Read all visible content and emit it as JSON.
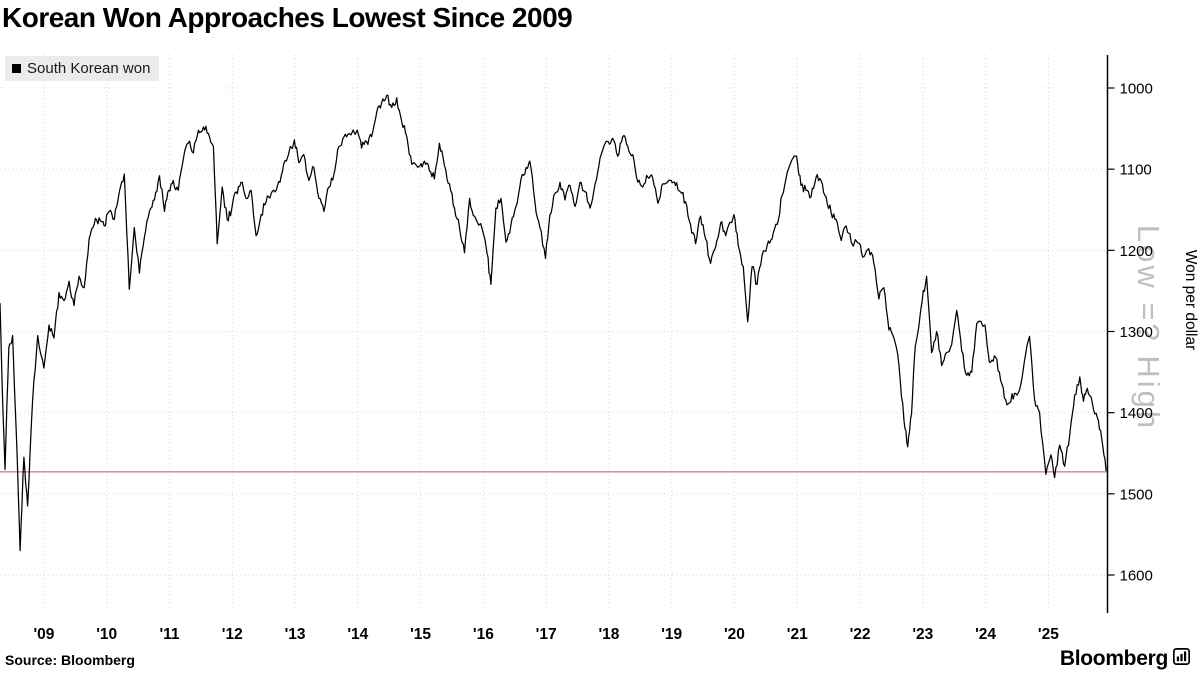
{
  "title": "Korean Won Approaches Lowest Since 2009",
  "legend": {
    "label": "South Korean won",
    "marker_color": "#000000"
  },
  "source": "Source: Bloomberg",
  "brand": "Bloomberg",
  "watermark": "Low =? High",
  "colors": {
    "line": "#000000",
    "reference_line": "#c9504e",
    "grid": "#d7d7d7",
    "axis": "#000000",
    "watermark": "#b5b5b5",
    "legend_bg": "#ebebeb"
  },
  "chart_data": {
    "type": "line",
    "title": "Korean Won Approaches Lowest Since 2009",
    "xlabel": "",
    "ylabel": "Won per dollar",
    "y_axis": {
      "label": "Won per dollar",
      "inverted": true,
      "range": [
        1000,
        1600
      ],
      "side": "right"
    },
    "y_ticks": [
      1000,
      1100,
      1200,
      1300,
      1400,
      1500,
      1600
    ],
    "x_range": [
      2008.3,
      2025.95
    ],
    "x_ticks": [
      {
        "year": 2009,
        "label": "'09"
      },
      {
        "year": 2010,
        "label": "'10"
      },
      {
        "year": 2011,
        "label": "'11"
      },
      {
        "year": 2012,
        "label": "'12"
      },
      {
        "year": 2013,
        "label": "'13"
      },
      {
        "year": 2014,
        "label": "'14"
      },
      {
        "year": 2015,
        "label": "'15"
      },
      {
        "year": 2016,
        "label": "'16"
      },
      {
        "year": 2017,
        "label": "'17"
      },
      {
        "year": 2018,
        "label": "'18"
      },
      {
        "year": 2019,
        "label": "'19"
      },
      {
        "year": 2020,
        "label": "'20"
      },
      {
        "year": 2021,
        "label": "'21"
      },
      {
        "year": 2022,
        "label": "'22"
      },
      {
        "year": 2023,
        "label": "'23"
      },
      {
        "year": 2024,
        "label": "'24"
      },
      {
        "year": 2025,
        "label": "'25"
      }
    ],
    "reference_line": {
      "value": 1473,
      "color": "#c9504e"
    },
    "series": [
      {
        "name": "South Korean won",
        "points": [
          [
            2008.3,
            1265
          ],
          [
            2008.34,
            1380
          ],
          [
            2008.38,
            1470
          ],
          [
            2008.44,
            1320
          ],
          [
            2008.5,
            1305
          ],
          [
            2008.56,
            1425
          ],
          [
            2008.62,
            1570
          ],
          [
            2008.68,
            1455
          ],
          [
            2008.74,
            1515
          ],
          [
            2008.82,
            1385
          ],
          [
            2008.9,
            1305
          ],
          [
            2009.0,
            1345
          ],
          [
            2009.08,
            1292
          ],
          [
            2009.16,
            1308
          ],
          [
            2009.24,
            1252
          ],
          [
            2009.32,
            1262
          ],
          [
            2009.4,
            1238
          ],
          [
            2009.48,
            1268
          ],
          [
            2009.56,
            1232
          ],
          [
            2009.64,
            1246
          ],
          [
            2009.72,
            1186
          ],
          [
            2009.8,
            1168
          ],
          [
            2009.88,
            1160
          ],
          [
            2009.96,
            1170
          ],
          [
            2010.04,
            1152
          ],
          [
            2010.12,
            1162
          ],
          [
            2010.2,
            1128
          ],
          [
            2010.28,
            1106
          ],
          [
            2010.36,
            1248
          ],
          [
            2010.44,
            1172
          ],
          [
            2010.52,
            1228
          ],
          [
            2010.6,
            1184
          ],
          [
            2010.68,
            1152
          ],
          [
            2010.76,
            1138
          ],
          [
            2010.84,
            1108
          ],
          [
            2010.92,
            1152
          ],
          [
            2010.99,
            1126
          ],
          [
            2011.06,
            1114
          ],
          [
            2011.14,
            1126
          ],
          [
            2011.22,
            1088
          ],
          [
            2011.3,
            1068
          ],
          [
            2011.38,
            1080
          ],
          [
            2011.46,
            1052
          ],
          [
            2011.54,
            1048
          ],
          [
            2011.62,
            1056
          ],
          [
            2011.7,
            1072
          ],
          [
            2011.76,
            1192
          ],
          [
            2011.84,
            1122
          ],
          [
            2011.92,
            1162
          ],
          [
            2011.99,
            1150
          ],
          [
            2012.06,
            1128
          ],
          [
            2012.14,
            1116
          ],
          [
            2012.22,
            1136
          ],
          [
            2012.3,
            1126
          ],
          [
            2012.38,
            1182
          ],
          [
            2012.46,
            1156
          ],
          [
            2012.54,
            1140
          ],
          [
            2012.62,
            1130
          ],
          [
            2012.7,
            1126
          ],
          [
            2012.78,
            1108
          ],
          [
            2012.86,
            1090
          ],
          [
            2012.99,
            1064
          ],
          [
            2013.06,
            1092
          ],
          [
            2013.14,
            1082
          ],
          [
            2013.22,
            1114
          ],
          [
            2013.3,
            1098
          ],
          [
            2013.38,
            1136
          ],
          [
            2013.46,
            1152
          ],
          [
            2013.54,
            1122
          ],
          [
            2013.62,
            1106
          ],
          [
            2013.7,
            1072
          ],
          [
            2013.78,
            1060
          ],
          [
            2013.86,
            1056
          ],
          [
            2013.99,
            1052
          ],
          [
            2014.06,
            1074
          ],
          [
            2014.14,
            1066
          ],
          [
            2014.22,
            1060
          ],
          [
            2014.3,
            1030
          ],
          [
            2014.38,
            1018
          ],
          [
            2014.46,
            1009
          ],
          [
            2014.54,
            1024
          ],
          [
            2014.62,
            1012
          ],
          [
            2014.7,
            1042
          ],
          [
            2014.78,
            1060
          ],
          [
            2014.86,
            1094
          ],
          [
            2014.99,
            1096
          ],
          [
            2015.06,
            1090
          ],
          [
            2015.14,
            1102
          ],
          [
            2015.22,
            1112
          ],
          [
            2015.3,
            1068
          ],
          [
            2015.38,
            1096
          ],
          [
            2015.46,
            1118
          ],
          [
            2015.54,
            1148
          ],
          [
            2015.62,
            1172
          ],
          [
            2015.7,
            1203
          ],
          [
            2015.78,
            1136
          ],
          [
            2015.86,
            1158
          ],
          [
            2015.99,
            1176
          ],
          [
            2016.06,
            1204
          ],
          [
            2016.12,
            1242
          ],
          [
            2016.2,
            1148
          ],
          [
            2016.28,
            1136
          ],
          [
            2016.36,
            1190
          ],
          [
            2016.44,
            1168
          ],
          [
            2016.52,
            1146
          ],
          [
            2016.6,
            1112
          ],
          [
            2016.68,
            1098
          ],
          [
            2016.74,
            1090
          ],
          [
            2016.82,
            1140
          ],
          [
            2016.9,
            1172
          ],
          [
            2016.99,
            1210
          ],
          [
            2017.06,
            1156
          ],
          [
            2017.14,
            1130
          ],
          [
            2017.22,
            1116
          ],
          [
            2017.3,
            1138
          ],
          [
            2017.38,
            1120
          ],
          [
            2017.46,
            1146
          ],
          [
            2017.54,
            1116
          ],
          [
            2017.62,
            1128
          ],
          [
            2017.7,
            1148
          ],
          [
            2017.78,
            1118
          ],
          [
            2017.86,
            1086
          ],
          [
            2017.99,
            1066
          ],
          [
            2018.06,
            1062
          ],
          [
            2018.14,
            1084
          ],
          [
            2018.22,
            1060
          ],
          [
            2018.3,
            1072
          ],
          [
            2018.38,
            1082
          ],
          [
            2018.46,
            1116
          ],
          [
            2018.54,
            1122
          ],
          [
            2018.62,
            1110
          ],
          [
            2018.7,
            1112
          ],
          [
            2018.78,
            1142
          ],
          [
            2018.86,
            1118
          ],
          [
            2018.99,
            1114
          ],
          [
            2019.06,
            1120
          ],
          [
            2019.14,
            1128
          ],
          [
            2019.22,
            1140
          ],
          [
            2019.3,
            1168
          ],
          [
            2019.38,
            1192
          ],
          [
            2019.46,
            1158
          ],
          [
            2019.54,
            1186
          ],
          [
            2019.62,
            1216
          ],
          [
            2019.7,
            1196
          ],
          [
            2019.78,
            1166
          ],
          [
            2019.86,
            1182
          ],
          [
            2019.99,
            1156
          ],
          [
            2020.06,
            1194
          ],
          [
            2020.14,
            1220
          ],
          [
            2020.21,
            1288
          ],
          [
            2020.28,
            1220
          ],
          [
            2020.36,
            1242
          ],
          [
            2020.44,
            1206
          ],
          [
            2020.52,
            1194
          ],
          [
            2020.6,
            1186
          ],
          [
            2020.68,
            1168
          ],
          [
            2020.76,
            1132
          ],
          [
            2020.84,
            1104
          ],
          [
            2020.99,
            1084
          ],
          [
            2021.06,
            1120
          ],
          [
            2021.14,
            1126
          ],
          [
            2021.22,
            1134
          ],
          [
            2021.3,
            1110
          ],
          [
            2021.38,
            1114
          ],
          [
            2021.46,
            1134
          ],
          [
            2021.54,
            1154
          ],
          [
            2021.62,
            1162
          ],
          [
            2021.7,
            1188
          ],
          [
            2021.78,
            1170
          ],
          [
            2021.86,
            1190
          ],
          [
            2021.99,
            1192
          ],
          [
            2022.06,
            1208
          ],
          [
            2022.14,
            1198
          ],
          [
            2022.22,
            1216
          ],
          [
            2022.3,
            1260
          ],
          [
            2022.38,
            1246
          ],
          [
            2022.46,
            1298
          ],
          [
            2022.54,
            1308
          ],
          [
            2022.62,
            1342
          ],
          [
            2022.7,
            1410
          ],
          [
            2022.76,
            1442
          ],
          [
            2022.82,
            1402
          ],
          [
            2022.88,
            1318
          ],
          [
            2022.99,
            1262
          ],
          [
            2023.06,
            1232
          ],
          [
            2023.14,
            1326
          ],
          [
            2023.22,
            1300
          ],
          [
            2023.3,
            1342
          ],
          [
            2023.38,
            1326
          ],
          [
            2023.46,
            1316
          ],
          [
            2023.54,
            1274
          ],
          [
            2023.62,
            1324
          ],
          [
            2023.7,
            1354
          ],
          [
            2023.78,
            1350
          ],
          [
            2023.86,
            1290
          ],
          [
            2023.99,
            1292
          ],
          [
            2024.06,
            1338
          ],
          [
            2024.14,
            1330
          ],
          [
            2024.22,
            1350
          ],
          [
            2024.3,
            1382
          ],
          [
            2024.38,
            1388
          ],
          [
            2024.46,
            1376
          ],
          [
            2024.54,
            1372
          ],
          [
            2024.62,
            1336
          ],
          [
            2024.7,
            1306
          ],
          [
            2024.78,
            1384
          ],
          [
            2024.86,
            1400
          ],
          [
            2024.96,
            1476
          ],
          [
            2025.04,
            1452
          ],
          [
            2025.1,
            1480
          ],
          [
            2025.18,
            1440
          ],
          [
            2025.26,
            1466
          ],
          [
            2025.34,
            1428
          ],
          [
            2025.42,
            1378
          ],
          [
            2025.5,
            1356
          ],
          [
            2025.56,
            1386
          ],
          [
            2025.62,
            1370
          ],
          [
            2025.7,
            1388
          ],
          [
            2025.78,
            1406
          ],
          [
            2025.85,
            1432
          ],
          [
            2025.92,
            1472
          ]
        ]
      }
    ]
  }
}
